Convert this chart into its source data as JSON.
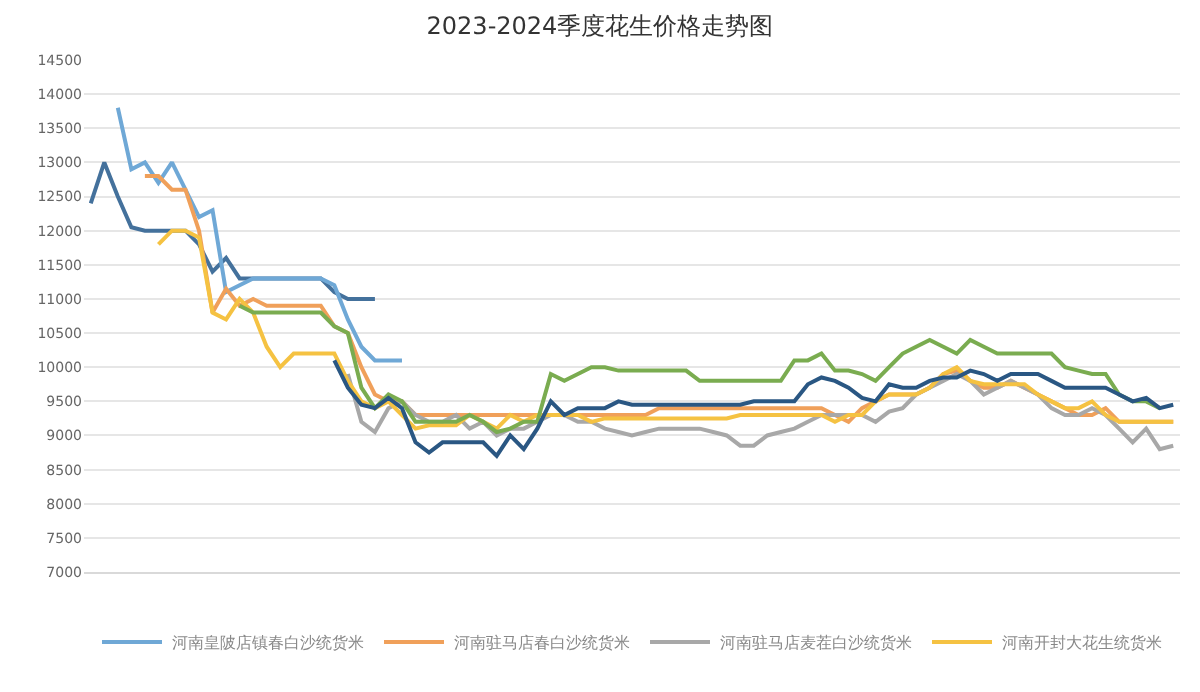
{
  "chart_data": {
    "type": "line",
    "title": "2023-2024季度花生价格走势图",
    "categories": [
      null,
      null,
      null,
      null,
      null,
      null,
      null,
      null,
      null,
      null,
      null,
      null,
      null,
      null,
      null,
      null,
      null,
      null,
      null,
      null,
      null,
      null,
      null,
      null,
      null,
      null,
      null,
      null,
      null,
      null,
      null,
      null,
      null,
      null,
      null,
      null,
      null,
      null,
      null,
      null,
      null,
      null,
      null,
      null,
      null,
      null,
      null,
      null,
      null,
      null,
      null,
      null,
      null,
      null,
      null,
      null,
      null,
      null,
      null,
      null,
      null,
      null,
      null,
      null,
      null,
      null,
      null,
      null,
      null,
      null,
      null,
      null,
      null,
      null,
      null,
      null,
      null,
      null,
      null,
      null,
      null
    ],
    "series": [
      {
        "color": "#44719c",
        "values": [
          12400,
          13000,
          12500,
          12050,
          12000,
          12000,
          12000,
          12000,
          11800,
          11400,
          11600,
          11300,
          11300,
          11300,
          11300,
          11300,
          11300,
          11300,
          11100,
          11000,
          11000,
          11000,
          null,
          null,
          null,
          null,
          null,
          null,
          null,
          null,
          null,
          null,
          null,
          null,
          null,
          null,
          null,
          null,
          null,
          null,
          null,
          null,
          null,
          null,
          null,
          null,
          null,
          null,
          null,
          null,
          null,
          null,
          null,
          null,
          null,
          null,
          null,
          null,
          null,
          null,
          null,
          null,
          null,
          null,
          null,
          null,
          null,
          null,
          null,
          null,
          null,
          null,
          null,
          null,
          null,
          null,
          null,
          null,
          null,
          null,
          null
        ]
      },
      {
        "name": "河南皇陂店镇春白沙统货米",
        "color": "#6fa8d6",
        "values": [
          null,
          null,
          13800,
          12900,
          13000,
          12700,
          13000,
          12600,
          12200,
          12300,
          11100,
          11200,
          11300,
          11300,
          11300,
          11300,
          11300,
          11300,
          11200,
          10700,
          10300,
          10100,
          10100,
          10100,
          null,
          null,
          null,
          null,
          null,
          null,
          null,
          null,
          null,
          null,
          null,
          null,
          null,
          null,
          null,
          null,
          null,
          null,
          null,
          null,
          null,
          null,
          null,
          null,
          null,
          null,
          null,
          null,
          null,
          null,
          null,
          null,
          null,
          null,
          null,
          null,
          null,
          null,
          null,
          null,
          null,
          null,
          null,
          null,
          null,
          null,
          null,
          null,
          null,
          null,
          null,
          null,
          null,
          null,
          null,
          null,
          null
        ]
      },
      {
        "name": "河南驻马店春白沙统货米",
        "color": "#f0a05a",
        "values": [
          null,
          null,
          null,
          null,
          12800,
          12800,
          12600,
          12600,
          12000,
          10800,
          11150,
          10900,
          11000,
          10900,
          10900,
          10900,
          10900,
          10900,
          10600,
          10500,
          10000,
          9600,
          9500,
          9500,
          9300,
          9300,
          9300,
          9300,
          9300,
          9300,
          9300,
          9300,
          9300,
          9300,
          9300,
          9300,
          9300,
          9300,
          9300,
          9300,
          9300,
          9300,
          9400,
          9400,
          9400,
          9400,
          9400,
          9400,
          9400,
          9400,
          9400,
          9400,
          9400,
          9400,
          9400,
          9300,
          9200,
          9400,
          9500,
          9600,
          9600,
          9600,
          9700,
          9900,
          9950,
          9800,
          9700,
          9700,
          9800,
          9700,
          9600,
          9500,
          9400,
          9300,
          9300,
          9400,
          9200,
          9200,
          9200,
          9200,
          9200
        ]
      },
      {
        "name": "河南驻马店麦茬白沙统货米",
        "color": "#a8a8a8",
        "values": [
          null,
          null,
          null,
          null,
          null,
          null,
          null,
          null,
          null,
          null,
          null,
          null,
          null,
          null,
          null,
          null,
          null,
          null,
          null,
          9900,
          9200,
          9050,
          9400,
          9500,
          9300,
          9200,
          9200,
          9300,
          9100,
          9200,
          9000,
          9100,
          9100,
          9200,
          9300,
          9300,
          9200,
          9200,
          9100,
          9050,
          9000,
          9050,
          9100,
          9100,
          9100,
          9100,
          9050,
          9000,
          8850,
          8850,
          9000,
          9050,
          9100,
          9200,
          9300,
          9300,
          9300,
          9300,
          9200,
          9350,
          9400,
          9600,
          9700,
          9800,
          9900,
          9800,
          9600,
          9700,
          9800,
          9700,
          9600,
          9400,
          9300,
          9300,
          9400,
          9300,
          9100,
          8900,
          9100,
          8800,
          8850
        ]
      },
      {
        "name": "河南开封大花生统货米",
        "color": "#f5c242",
        "values": [
          null,
          null,
          null,
          null,
          null,
          11800,
          12000,
          12000,
          11900,
          10800,
          10700,
          11000,
          10800,
          10300,
          10000,
          10200,
          10200,
          10200,
          10200,
          9800,
          9500,
          9400,
          9500,
          9300,
          9100,
          9150,
          9150,
          9150,
          9300,
          9200,
          9100,
          9300,
          9200,
          9300,
          9300,
          9300,
          9300,
          9200,
          9250,
          9250,
          9250,
          9250,
          9250,
          9250,
          9250,
          9250,
          9250,
          9250,
          9300,
          9300,
          9300,
          9300,
          9300,
          9300,
          9300,
          9200,
          9300,
          9300,
          9500,
          9600,
          9600,
          9600,
          9700,
          9900,
          10000,
          9800,
          9750,
          9750,
          9750,
          9750,
          9600,
          9500,
          9400,
          9400,
          9500,
          9300,
          9200,
          9200,
          9200,
          9200,
          9200
        ]
      },
      {
        "color": "#7aac50",
        "values": [
          null,
          null,
          null,
          null,
          null,
          null,
          null,
          null,
          null,
          null,
          null,
          10900,
          10800,
          10800,
          10800,
          10800,
          10800,
          10800,
          10600,
          10500,
          9700,
          9400,
          9600,
          9500,
          9200,
          9200,
          9200,
          9200,
          9300,
          9200,
          9050,
          9100,
          9200,
          9200,
          9900,
          9800,
          9900,
          10000,
          10000,
          9950,
          9950,
          9950,
          9950,
          9950,
          9950,
          9800,
          9800,
          9800,
          9800,
          9800,
          9800,
          9800,
          10100,
          10100,
          10200,
          9950,
          9950,
          9900,
          9800,
          10000,
          10200,
          10300,
          10400,
          10300,
          10200,
          10400,
          10300,
          10200,
          10200,
          10200,
          10200,
          10200,
          10000,
          9950,
          9900,
          9900,
          9600,
          9500,
          9500,
          9400,
          null
        ]
      },
      {
        "color": "#2a5783",
        "values": [
          null,
          null,
          null,
          null,
          null,
          null,
          null,
          null,
          null,
          null,
          null,
          null,
          null,
          null,
          null,
          null,
          null,
          null,
          10100,
          9700,
          9450,
          9400,
          9550,
          9400,
          8900,
          8750,
          8900,
          8900,
          8900,
          8900,
          8700,
          9000,
          8800,
          9100,
          9500,
          9300,
          9400,
          9400,
          9400,
          9500,
          9450,
          9450,
          9450,
          9450,
          9450,
          9450,
          9450,
          9450,
          9450,
          9500,
          9500,
          9500,
          9500,
          9750,
          9850,
          9800,
          9700,
          9550,
          9500,
          9750,
          9700,
          9700,
          9800,
          9850,
          9850,
          9950,
          9900,
          9800,
          9900,
          9900,
          9900,
          9800,
          9700,
          9700,
          9700,
          9700,
          9600,
          9500,
          9550,
          9400,
          9450
        ]
      }
    ],
    "ylim": [
      7000,
      14500
    ],
    "yticks": [
      7000,
      7500,
      8000,
      8500,
      9000,
      9500,
      10000,
      10500,
      11000,
      11500,
      12000,
      12500,
      13000,
      13500,
      14000,
      14500
    ],
    "grid": "y",
    "legend": "bottom",
    "line_style": "solid",
    "marker": "none"
  }
}
